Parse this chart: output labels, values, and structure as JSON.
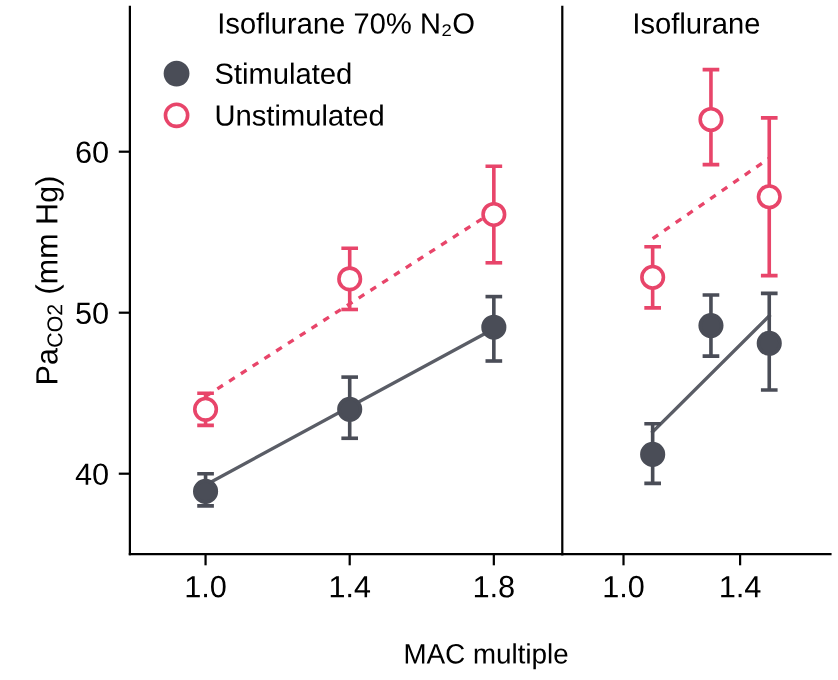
{
  "chart_data": [
    {
      "type": "scatter",
      "title": "Isoflurane 70% N₂O",
      "xlabel": "MAC multiple",
      "ylabel": "Pa$_{CO2}$ (mm Hg)",
      "xlim": [
        0.79,
        1.99
      ],
      "xticks": [
        {
          "value": 1.0,
          "label": "1.0"
        },
        {
          "value": 1.4,
          "label": "1.4"
        },
        {
          "value": 1.8,
          "label": "1.8"
        }
      ],
      "ylim": [
        35,
        69
      ],
      "yticks": [
        40,
        50,
        60
      ],
      "legend": "top left",
      "grid": false,
      "series": [
        {
          "name": "Stimulated",
          "marker": "circle",
          "color": "#4a4d57",
          "x": [
            1.0,
            1.4,
            1.8
          ],
          "values": [
            38.9,
            44,
            49.1
          ],
          "errors": [
            [
              38,
              40
            ],
            [
              42.2,
              46
            ],
            [
              47,
              51
            ]
          ]
        },
        {
          "name": "Unstimulated",
          "marker": "circle",
          "color": "#e8456a",
          "x": [
            1.0,
            1.4,
            1.8
          ],
          "values": [
            44,
            52.1,
            56.1
          ],
          "errors": [
            [
              43,
              45
            ],
            [
              50.2,
              54
            ],
            [
              53.1,
              59.1
            ]
          ]
        },
        {
          "type": "line",
          "color": "#5a5d66",
          "line_style": "solid",
          "x": [
            1.0,
            1.8
          ],
          "values": [
            39.3,
            49
          ]
        },
        {
          "type": "line",
          "color": "#e8456a",
          "line_style": "dotted",
          "x": [
            1.0,
            1.8
          ],
          "values": [
            44.8,
            56.3
          ]
        }
      ]
    },
    {
      "type": "scatter",
      "title": "Isoflurane",
      "xlim": [
        0.79,
        1.71
      ],
      "xticks": [
        {
          "value": 1.0,
          "label": "1.0"
        },
        {
          "value": 1.4,
          "label": "1.4"
        }
      ],
      "ylim": [
        35,
        69
      ],
      "tick_labels": "x",
      "grid": false,
      "series": [
        {
          "marker": "circle",
          "color": "#4a4d57",
          "x": [
            1.1,
            1.3,
            1.5
          ],
          "values": [
            41.2,
            49.2,
            48.1
          ],
          "errors": [
            [
              39.4,
              43.1
            ],
            [
              47.3,
              51.1
            ],
            [
              45.2,
              51.2
            ]
          ]
        },
        {
          "marker": "circle",
          "color": "#e8456a",
          "x": [
            1.1,
            1.3,
            1.5
          ],
          "values": [
            52.2,
            62,
            57.2
          ],
          "errors": [
            [
              50.3,
              54.1
            ],
            [
              59.2,
              65.1
            ],
            [
              52.3,
              62.1
            ]
          ]
        },
        {
          "type": "line",
          "color": "#5a5d66",
          "line_style": "solid",
          "x": [
            1.1,
            1.5
          ],
          "values": [
            42.6,
            49.8
          ]
        },
        {
          "type": "line",
          "color": "#e8456a",
          "line_style": "dotted",
          "x": [
            1.1,
            1.5
          ],
          "values": [
            54.6,
            59.6
          ]
        }
      ]
    }
  ]
}
